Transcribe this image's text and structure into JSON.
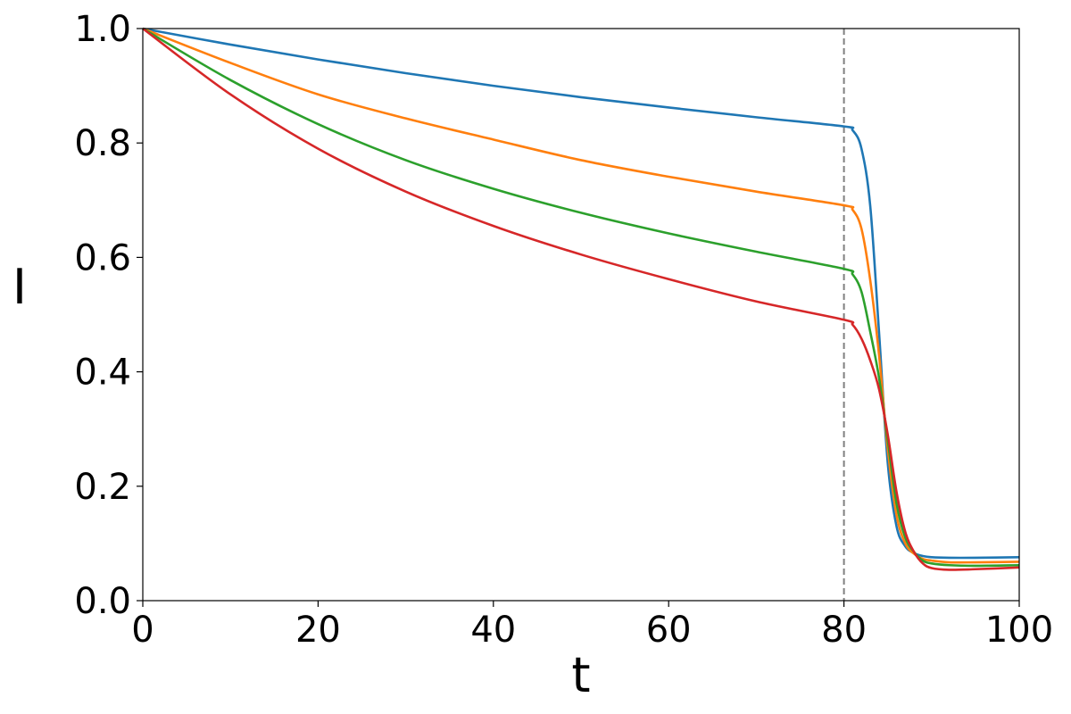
{
  "chart_data": {
    "type": "line",
    "title": "",
    "xlabel": "t",
    "ylabel": "I",
    "xlim": [
      0,
      100
    ],
    "ylim": [
      0.0,
      1.0
    ],
    "xticks": [
      "0",
      "20",
      "40",
      "60",
      "80",
      "100"
    ],
    "yticks": [
      "0.0",
      "0.2",
      "0.4",
      "0.6",
      "0.8",
      "1.0"
    ],
    "grid": false,
    "legend": "none",
    "vline": {
      "x": 80,
      "style": "dashed",
      "color": "#808080"
    },
    "x": [
      0,
      10,
      20,
      30,
      40,
      50,
      60,
      70,
      80,
      81,
      82,
      83,
      84,
      85,
      86,
      87,
      88,
      89,
      90,
      92,
      95,
      100
    ],
    "series": [
      {
        "color": "#1f77b4",
        "values": [
          1.0,
          0.972,
          0.946,
          0.922,
          0.9,
          0.88,
          0.862,
          0.845,
          0.829,
          0.822,
          0.79,
          0.69,
          0.47,
          0.24,
          0.13,
          0.095,
          0.083,
          0.078,
          0.076,
          0.075,
          0.075,
          0.076
        ]
      },
      {
        "color": "#ff7f0e",
        "values": [
          1.0,
          0.94,
          0.885,
          0.843,
          0.806,
          0.77,
          0.741,
          0.715,
          0.691,
          0.683,
          0.65,
          0.56,
          0.43,
          0.265,
          0.15,
          0.1,
          0.082,
          0.073,
          0.07,
          0.067,
          0.067,
          0.068
        ]
      },
      {
        "color": "#2ca02c",
        "values": [
          1.0,
          0.91,
          0.833,
          0.77,
          0.72,
          0.678,
          0.642,
          0.61,
          0.58,
          0.57,
          0.54,
          0.47,
          0.39,
          0.28,
          0.17,
          0.11,
          0.085,
          0.07,
          0.065,
          0.062,
          0.061,
          0.062
        ]
      },
      {
        "color": "#d62728",
        "values": [
          1.0,
          0.885,
          0.79,
          0.715,
          0.655,
          0.605,
          0.562,
          0.523,
          0.491,
          0.482,
          0.458,
          0.42,
          0.37,
          0.29,
          0.19,
          0.12,
          0.085,
          0.065,
          0.057,
          0.054,
          0.055,
          0.058
        ]
      }
    ]
  }
}
